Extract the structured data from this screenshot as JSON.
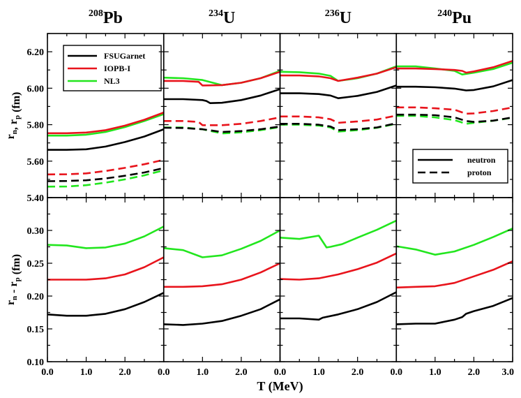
{
  "chart_data": {
    "type": "line",
    "xlabel": "T (MeV)",
    "x_ticks": [
      "0.0",
      "1.0",
      "2.0",
      "0.0",
      "1.0",
      "2.0",
      "0.0",
      "1.0",
      "2.0",
      "0.0",
      "1.0",
      "2.0",
      "3.0"
    ],
    "xlim": [
      0,
      3
    ],
    "top_row": {
      "ylabel": "r_n, r_p (fm)",
      "ylim": [
        5.4,
        6.3
      ],
      "y_ticks": [
        "5.40",
        "5.60",
        "5.80",
        "6.00",
        "6.20"
      ]
    },
    "bottom_row": {
      "ylabel": "r_n - r_p (fm)",
      "ylim": [
        0.1,
        0.35
      ],
      "y_ticks": [
        "0.10",
        "0.15",
        "0.20",
        "0.25",
        "0.30"
      ]
    },
    "legend_models": [
      {
        "name": "FSUGarnet",
        "color": "#000000"
      },
      {
        "name": "IOPB-I",
        "color": "#e8141c"
      },
      {
        "name": "NL3",
        "color": "#22e61e"
      }
    ],
    "legend_styles": [
      {
        "name": "neutron",
        "dash": "solid"
      },
      {
        "name": "proton",
        "dash": "dashed"
      }
    ],
    "nuclei": [
      {
        "mass": "208",
        "element": "Pb",
        "radii": {
          "x": [
            0,
            0.5,
            1.0,
            1.5,
            2.0,
            2.5,
            3.0
          ],
          "FSUGarnet": {
            "neutron": [
              5.662,
              5.662,
              5.665,
              5.68,
              5.705,
              5.735,
              5.775
            ],
            "proton": [
              5.49,
              5.491,
              5.495,
              5.505,
              5.52,
              5.538,
              5.562
            ]
          },
          "IOPB-I": {
            "neutron": [
              5.753,
              5.753,
              5.757,
              5.77,
              5.795,
              5.827,
              5.867
            ],
            "proton": [
              5.527,
              5.528,
              5.533,
              5.546,
              5.563,
              5.583,
              5.607
            ]
          },
          "NL3": {
            "neutron": [
              5.74,
              5.74,
              5.745,
              5.76,
              5.787,
              5.82,
              5.858
            ],
            "proton": [
              5.46,
              5.461,
              5.468,
              5.482,
              5.5,
              5.522,
              5.55
            ]
          }
        },
        "skin": {
          "x": [
            0,
            0.5,
            1.0,
            1.5,
            2.0,
            2.5,
            3.0
          ],
          "FSUGarnet": [
            0.172,
            0.17,
            0.17,
            0.173,
            0.18,
            0.191,
            0.205
          ],
          "IOPB-I": [
            0.225,
            0.225,
            0.225,
            0.227,
            0.233,
            0.244,
            0.259
          ],
          "NL3": [
            0.278,
            0.277,
            0.273,
            0.274,
            0.28,
            0.291,
            0.306
          ]
        }
      },
      {
        "mass": "234",
        "element": "U",
        "radii": {
          "FSUGarnet": {
            "x": [
              0,
              0.5,
              1.0,
              1.1,
              1.2,
              1.5,
              2.0,
              2.5,
              3.0
            ],
            "neutron": [
              5.94,
              5.94,
              5.935,
              5.93,
              5.918,
              5.92,
              5.935,
              5.96,
              5.995
            ]
          },
          "FSUGarnet_proton": {
            "x": [
              0,
              0.5,
              1.0,
              1.5,
              2.0,
              2.5,
              3.0
            ],
            "values": [
              5.783,
              5.782,
              5.775,
              5.76,
              5.765,
              5.775,
              5.79
            ]
          },
          "IOPB-I": {
            "x": [
              0,
              0.5,
              0.9,
              1.0,
              1.5,
              2.0,
              2.5,
              3.0
            ],
            "neutron": [
              6.04,
              6.04,
              6.035,
              6.015,
              6.017,
              6.03,
              6.055,
              6.09
            ]
          },
          "IOPB-I_proton": {
            "x": [
              0,
              0.5,
              0.9,
              1.0,
              1.5,
              2.0,
              2.5,
              3.0
            ],
            "values": [
              5.82,
              5.82,
              5.815,
              5.797,
              5.797,
              5.805,
              5.82,
              5.84
            ]
          },
          "NL3": {
            "x": [
              0,
              0.5,
              1.0,
              1.5,
              2.0,
              2.5,
              3.0
            ],
            "neutron": [
              6.058,
              6.055,
              6.045,
              6.017,
              6.03,
              6.055,
              6.095
            ]
          },
          "NL3_proton": {
            "x": [
              0,
              0.5,
              1.0,
              1.5,
              2.0,
              2.5,
              3.0
            ],
            "values": [
              5.785,
              5.785,
              5.775,
              5.752,
              5.758,
              5.77,
              5.787
            ]
          }
        },
        "skin": {
          "FSUGarnet": {
            "x": [
              0,
              0.5,
              1.0,
              1.5,
              2.0,
              2.5,
              3.0
            ],
            "values": [
              0.157,
              0.156,
              0.158,
              0.162,
              0.17,
              0.18,
              0.195
            ]
          },
          "IOPB-I": {
            "x": [
              0,
              0.5,
              1.0,
              1.5,
              2.0,
              2.5,
              3.0
            ],
            "values": [
              0.214,
              0.214,
              0.215,
              0.218,
              0.225,
              0.236,
              0.25
            ]
          },
          "NL3": {
            "x": [
              0,
              0.5,
              1.0,
              1.5,
              2.0,
              2.5,
              3.0
            ],
            "values": [
              0.273,
              0.27,
              0.259,
              0.262,
              0.272,
              0.284,
              0.3
            ]
          }
        }
      },
      {
        "mass": "236",
        "element": "U",
        "radii": {
          "FSUGarnet": {
            "x": [
              0,
              0.5,
              1.0,
              1.3,
              1.5,
              2.0,
              2.5,
              3.0
            ],
            "neutron": [
              5.972,
              5.972,
              5.968,
              5.96,
              5.945,
              5.958,
              5.98,
              6.015
            ]
          },
          "FSUGarnet_proton": {
            "x": [
              0,
              0.5,
              1.0,
              1.3,
              1.5,
              2.0,
              2.5,
              3.0
            ],
            "values": [
              5.805,
              5.805,
              5.8,
              5.79,
              5.77,
              5.775,
              5.785,
              5.808
            ]
          },
          "IOPB-I": {
            "x": [
              0,
              0.5,
              1.0,
              1.3,
              1.5,
              2.0,
              2.5,
              3.0
            ],
            "neutron": [
              6.07,
              6.07,
              6.065,
              6.055,
              6.04,
              6.058,
              6.08,
              6.115
            ]
          },
          "IOPB-I_proton": {
            "x": [
              0,
              0.5,
              1.0,
              1.3,
              1.5,
              2.0,
              2.5,
              3.0
            ],
            "values": [
              5.845,
              5.845,
              5.84,
              5.83,
              5.81,
              5.818,
              5.828,
              5.85
            ]
          },
          "NL3": {
            "x": [
              0,
              0.5,
              1.0,
              1.3,
              1.5,
              2.0,
              2.5,
              3.0
            ],
            "neutron": [
              6.09,
              6.088,
              6.08,
              6.068,
              6.04,
              6.055,
              6.08,
              6.12
            ]
          },
          "NL3_proton": {
            "x": [
              0,
              0.5,
              1.0,
              1.3,
              1.5,
              2.0,
              2.5,
              3.0
            ],
            "values": [
              5.8,
              5.8,
              5.795,
              5.785,
              5.762,
              5.77,
              5.783,
              5.805
            ]
          }
        },
        "skin": {
          "FSUGarnet": {
            "x": [
              0,
              0.5,
              1.0,
              1.1,
              1.5,
              2.0,
              2.5,
              3.0
            ],
            "values": [
              0.166,
              0.166,
              0.164,
              0.167,
              0.172,
              0.18,
              0.191,
              0.206
            ]
          },
          "IOPB-I": {
            "x": [
              0,
              0.5,
              1.0,
              1.5,
              2.0,
              2.5,
              3.0
            ],
            "values": [
              0.226,
              0.225,
              0.227,
              0.233,
              0.241,
              0.251,
              0.265
            ]
          },
          "NL3": {
            "x": [
              0,
              0.5,
              1.0,
              1.2,
              1.3,
              1.6,
              2.0,
              2.5,
              3.0
            ],
            "values": [
              0.289,
              0.287,
              0.292,
              0.274,
              0.275,
              0.279,
              0.289,
              0.301,
              0.315
            ]
          }
        }
      },
      {
        "mass": "240",
        "element": "Pu",
        "radii": {
          "FSUGarnet": {
            "x": [
              0,
              0.5,
              1.0,
              1.5,
              1.8,
              2.0,
              2.5,
              3.0
            ],
            "neutron": [
              6.008,
              6.008,
              6.005,
              5.998,
              5.988,
              5.99,
              6.01,
              6.045
            ]
          },
          "FSUGarnet_proton": {
            "x": [
              0,
              0.5,
              1.0,
              1.5,
              1.8,
              2.0,
              2.5,
              3.0
            ],
            "values": [
              5.855,
              5.855,
              5.852,
              5.84,
              5.82,
              5.815,
              5.822,
              5.84
            ]
          },
          "IOPB-I": {
            "x": [
              0,
              0.5,
              1.0,
              1.5,
              1.7,
              1.8,
              2.0,
              2.5,
              3.0
            ],
            "neutron": [
              6.108,
              6.108,
              6.105,
              6.1,
              6.095,
              6.085,
              6.092,
              6.115,
              6.15
            ]
          },
          "IOPB-I_proton": {
            "x": [
              0,
              0.5,
              1.0,
              1.5,
              1.8,
              2.0,
              2.5,
              3.0
            ],
            "values": [
              5.895,
              5.895,
              5.89,
              5.882,
              5.86,
              5.862,
              5.875,
              5.895
            ]
          },
          "NL3": {
            "x": [
              0,
              0.5,
              1.0,
              1.5,
              1.7,
              2.0,
              2.5,
              3.0
            ],
            "neutron": [
              6.12,
              6.12,
              6.108,
              6.095,
              6.075,
              6.085,
              6.105,
              6.14
            ]
          },
          "NL3_proton": {
            "x": [
              0,
              0.5,
              1.0,
              1.5,
              1.8,
              2.0,
              2.5,
              3.0
            ],
            "values": [
              5.848,
              5.848,
              5.84,
              5.825,
              5.805,
              5.81,
              5.822,
              5.838
            ]
          }
        },
        "skin": {
          "FSUGarnet": {
            "x": [
              0,
              0.5,
              1.0,
              1.5,
              1.7,
              1.8,
              2.0,
              2.5,
              3.0
            ],
            "values": [
              0.157,
              0.158,
              0.158,
              0.164,
              0.168,
              0.173,
              0.177,
              0.185,
              0.197
            ]
          },
          "IOPB-I": {
            "x": [
              0,
              0.5,
              1.0,
              1.5,
              2.0,
              2.5,
              3.0
            ],
            "values": [
              0.213,
              0.214,
              0.215,
              0.22,
              0.23,
              0.24,
              0.253
            ]
          },
          "NL3": {
            "x": [
              0,
              0.5,
              1.0,
              1.5,
              2.0,
              2.5,
              3.0
            ],
            "values": [
              0.276,
              0.271,
              0.263,
              0.268,
              0.278,
              0.29,
              0.303
            ]
          }
        }
      }
    ]
  }
}
